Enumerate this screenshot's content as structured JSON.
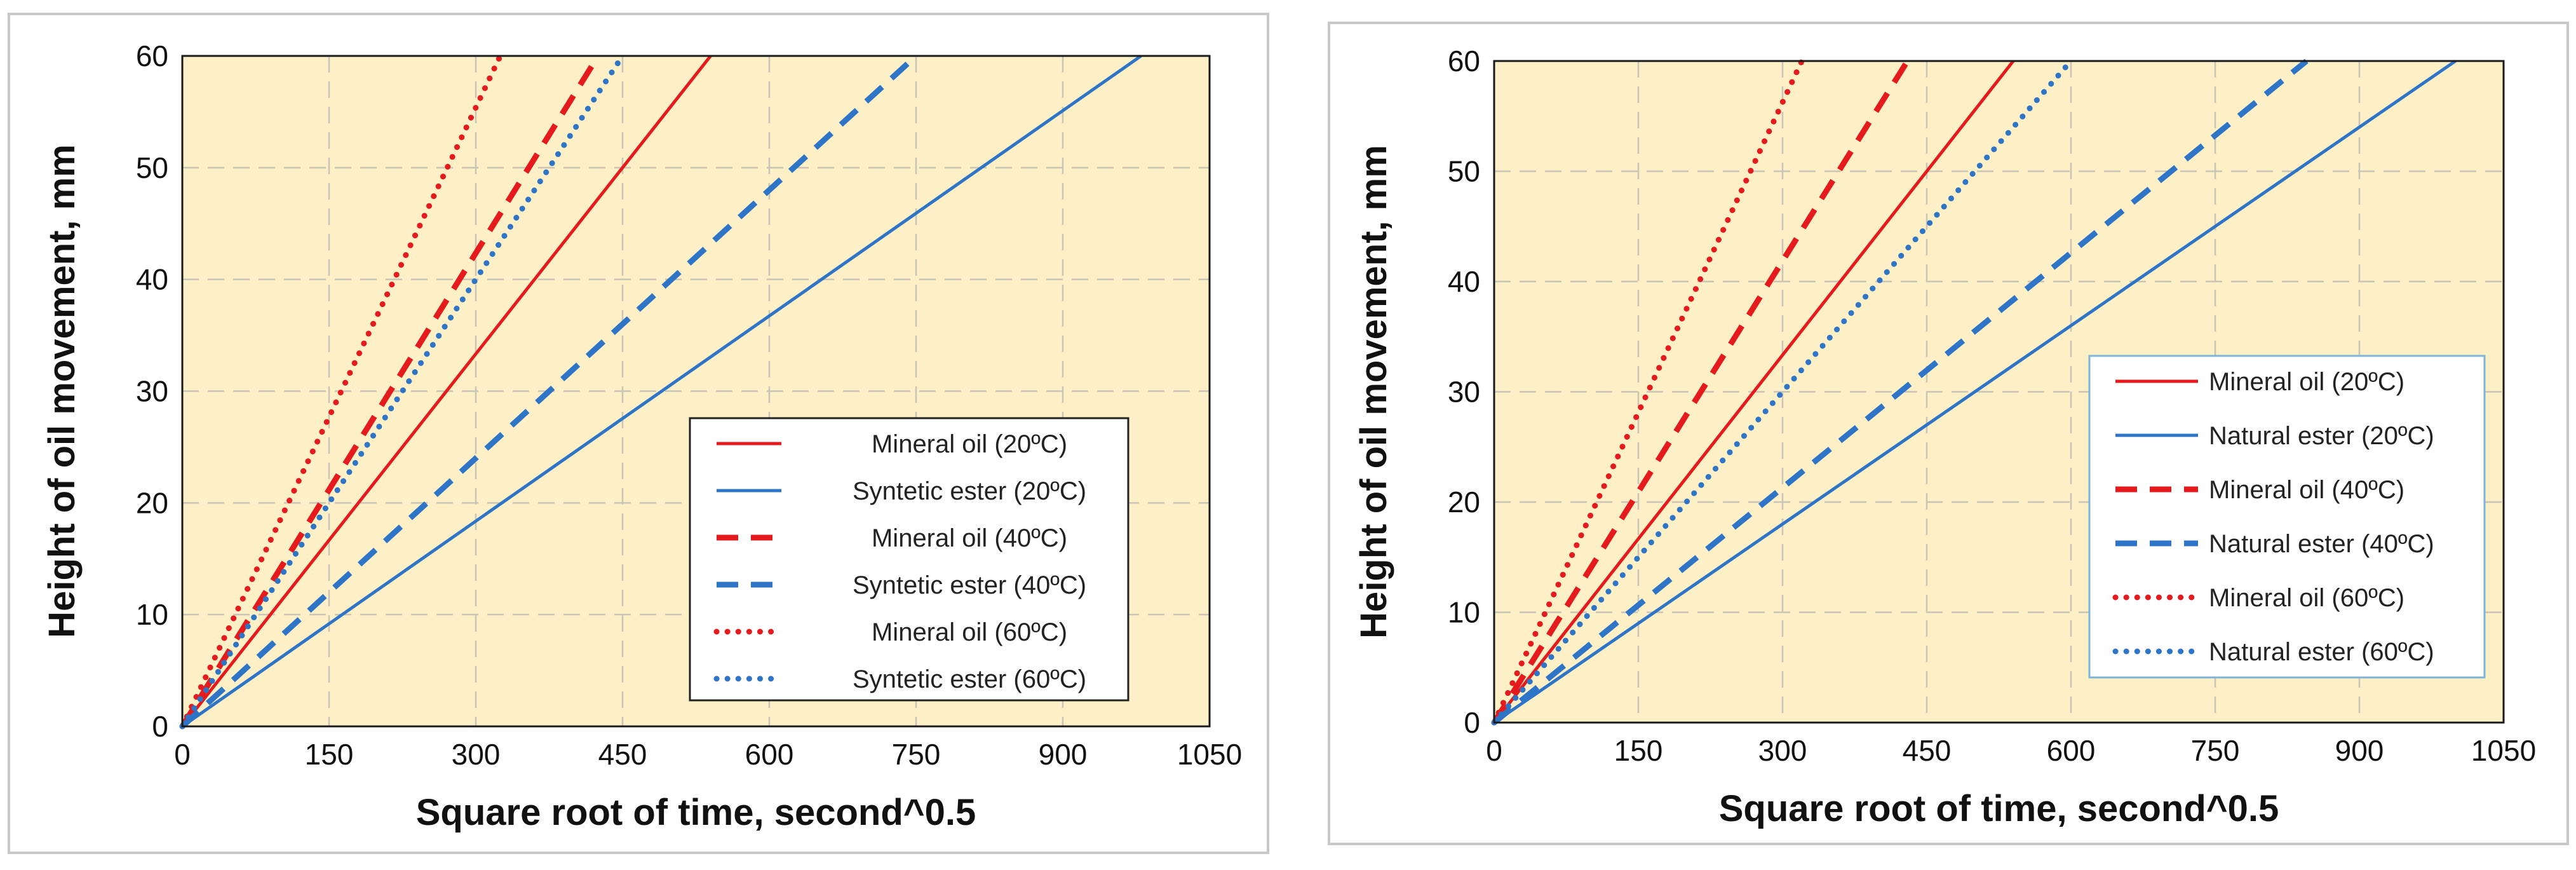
{
  "chart_data": [
    {
      "type": "line",
      "xlabel": "Square root of time, second^0.5",
      "ylabel": "Height of oil movement, mm",
      "xlim": [
        0,
        1050
      ],
      "ylim": [
        0,
        60
      ],
      "xticks": [
        0,
        150,
        300,
        450,
        600,
        750,
        900,
        1050
      ],
      "yticks": [
        0,
        10,
        20,
        30,
        40,
        50,
        60
      ],
      "grid": true,
      "legend_position": "bottom-right",
      "legend_border_color": "#222222",
      "series": [
        {
          "name": "Mineral oil (20ºC)",
          "color": "#e41a1c",
          "style": "solid",
          "x": [
            0,
            540
          ],
          "y": [
            0,
            60
          ]
        },
        {
          "name": "Syntetic ester (20ºC)",
          "color": "#2e75c8",
          "style": "solid",
          "x": [
            0,
            980
          ],
          "y": [
            0,
            60
          ]
        },
        {
          "name": "Mineral oil (40ºC)",
          "color": "#e41a1c",
          "style": "dashed",
          "x": [
            0,
            425
          ],
          "y": [
            0,
            60
          ]
        },
        {
          "name": "Syntetic ester (40ºC)",
          "color": "#2e75c8",
          "style": "dashed",
          "x": [
            0,
            750
          ],
          "y": [
            0,
            60
          ]
        },
        {
          "name": "Mineral oil (60ºC)",
          "color": "#e41a1c",
          "style": "dotted",
          "x": [
            0,
            325
          ],
          "y": [
            0,
            60
          ]
        },
        {
          "name": "Syntetic ester (60ºC)",
          "color": "#2e75c8",
          "style": "dotted",
          "x": [
            0,
            450
          ],
          "y": [
            0,
            60
          ]
        }
      ]
    },
    {
      "type": "line",
      "xlabel": "Square root of time, second^0.5",
      "ylabel": "Height of oil movement, mm",
      "xlim": [
        0,
        1050
      ],
      "ylim": [
        0,
        60
      ],
      "xticks": [
        0,
        150,
        300,
        450,
        600,
        750,
        900,
        1050
      ],
      "yticks": [
        0,
        10,
        20,
        30,
        40,
        50,
        60
      ],
      "grid": true,
      "legend_position": "right",
      "legend_border_color": "#7fb3d9",
      "series": [
        {
          "name": "Mineral oil (20ºC)",
          "color": "#e41a1c",
          "style": "solid",
          "x": [
            0,
            540
          ],
          "y": [
            0,
            60
          ]
        },
        {
          "name": "Natural ester (20ºC)",
          "color": "#2e75c8",
          "style": "solid",
          "x": [
            0,
            1000
          ],
          "y": [
            0,
            60
          ]
        },
        {
          "name": "Mineral oil (40ºC)",
          "color": "#e41a1c",
          "style": "dashed",
          "x": [
            0,
            430
          ],
          "y": [
            0,
            60
          ]
        },
        {
          "name": "Natural ester (40ºC)",
          "color": "#2e75c8",
          "style": "dashed",
          "x": [
            0,
            845
          ],
          "y": [
            0,
            60
          ]
        },
        {
          "name": "Mineral oil (60ºC)",
          "color": "#e41a1c",
          "style": "dotted",
          "x": [
            0,
            320
          ],
          "y": [
            0,
            60
          ]
        },
        {
          "name": "Natural ester (60ºC)",
          "color": "#2e75c8",
          "style": "dotted",
          "x": [
            0,
            600
          ],
          "y": [
            0,
            60
          ]
        }
      ]
    }
  ]
}
